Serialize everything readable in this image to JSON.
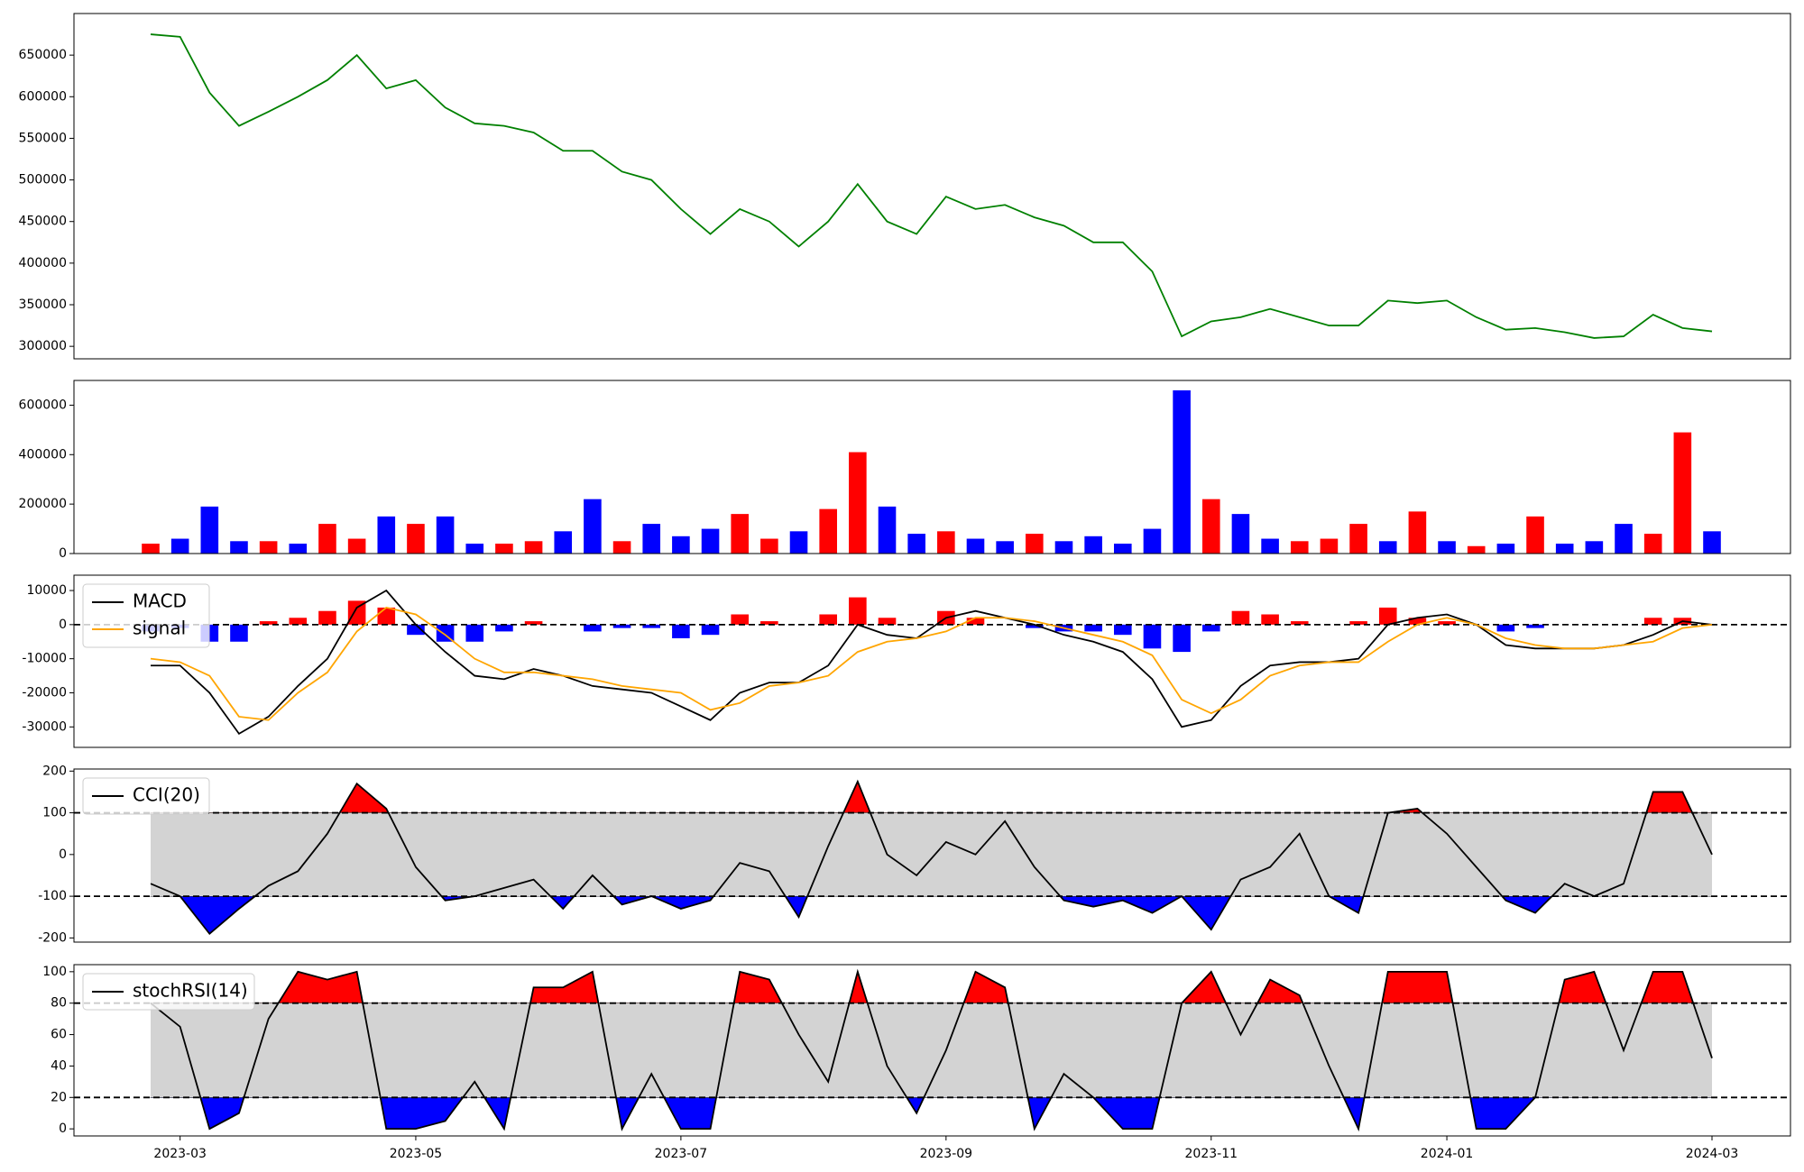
{
  "chart_data": [
    {
      "type": "line",
      "ylim": [
        285000,
        700000
      ],
      "yticks": [
        300000,
        350000,
        400000,
        450000,
        500000,
        550000,
        600000,
        650000
      ],
      "series": [
        {
          "color": "#008000",
          "values": [
            675000,
            672000,
            605000,
            565000,
            582000,
            600000,
            620000,
            650000,
            610000,
            620000,
            587000,
            568000,
            565000,
            557000,
            535000,
            535000,
            510000,
            500000,
            465000,
            435000,
            465000,
            450000,
            420000,
            450000,
            495000,
            450000,
            435000,
            480000,
            465000,
            470000,
            455000,
            445000,
            425000,
            425000,
            390000,
            312000,
            330000,
            335000,
            345000,
            335000,
            325000,
            325000,
            355000,
            352000,
            355000,
            335000,
            320000,
            322000,
            317000,
            310000,
            312000,
            338000,
            322000,
            318000
          ]
        }
      ]
    },
    {
      "type": "bar",
      "ylim": [
        0,
        700000
      ],
      "yticks": [
        0,
        200000,
        400000,
        600000
      ],
      "values": [
        40000,
        60000,
        190000,
        50000,
        50000,
        40000,
        120000,
        60000,
        150000,
        120000,
        150000,
        40000,
        40000,
        50000,
        90000,
        220000,
        50000,
        120000,
        70000,
        100000,
        160000,
        60000,
        90000,
        180000,
        410000,
        190000,
        80000,
        90000,
        60000,
        50000,
        80000,
        50000,
        70000,
        40000,
        100000,
        660000,
        220000,
        160000,
        60000,
        50000,
        60000,
        120000,
        50000,
        170000,
        50000,
        30000,
        40000,
        150000,
        40000,
        50000,
        120000,
        80000,
        490000,
        90000
      ],
      "colors": [
        "#ff0000",
        "#0000ff",
        "#0000ff",
        "#0000ff",
        "#ff0000",
        "#0000ff",
        "#ff0000",
        "#ff0000",
        "#0000ff",
        "#ff0000",
        "#0000ff",
        "#0000ff",
        "#ff0000",
        "#ff0000",
        "#0000ff",
        "#0000ff",
        "#ff0000",
        "#0000ff",
        "#0000ff",
        "#0000ff",
        "#ff0000",
        "#ff0000",
        "#0000ff",
        "#ff0000",
        "#ff0000",
        "#0000ff",
        "#0000ff",
        "#ff0000",
        "#0000ff",
        "#0000ff",
        "#ff0000",
        "#0000ff",
        "#0000ff",
        "#0000ff",
        "#0000ff",
        "#0000ff",
        "#ff0000",
        "#0000ff",
        "#0000ff",
        "#ff0000",
        "#ff0000",
        "#ff0000",
        "#0000ff",
        "#ff0000",
        "#0000ff",
        "#ff0000",
        "#0000ff",
        "#ff0000",
        "#0000ff",
        "#0000ff",
        "#0000ff",
        "#ff0000",
        "#ff0000",
        "#0000ff"
      ]
    },
    {
      "type": "line",
      "ylim": [
        -36000,
        14500
      ],
      "yticks": [
        -30000,
        -20000,
        -10000,
        0,
        10000
      ],
      "thresholds": [
        0
      ],
      "series": [
        {
          "name": "MACD",
          "color": "#000000",
          "values": [
            -12000,
            -12000,
            -20000,
            -32000,
            -27000,
            -18000,
            -10000,
            5000,
            10000,
            0,
            -8000,
            -15000,
            -16000,
            -13000,
            -15000,
            -18000,
            -19000,
            -20000,
            -24000,
            -28000,
            -20000,
            -17000,
            -17000,
            -12000,
            0,
            -3000,
            -4000,
            2000,
            4000,
            2000,
            0,
            -3000,
            -5000,
            -8000,
            -16000,
            -30000,
            -28000,
            -18000,
            -12000,
            -11000,
            -11000,
            -10000,
            0,
            2000,
            3000,
            0,
            -6000,
            -7000,
            -7000,
            -7000,
            -6000,
            -3000,
            1000,
            0
          ]
        },
        {
          "name": "signal",
          "color": "#ffa500",
          "values": [
            -10000,
            -11000,
            -15000,
            -27000,
            -28000,
            -20000,
            -14000,
            -2000,
            5000,
            3000,
            -3000,
            -10000,
            -14000,
            -14000,
            -15000,
            -16000,
            -18000,
            -19000,
            -20000,
            -25000,
            -23000,
            -18000,
            -17000,
            -15000,
            -8000,
            -5000,
            -4000,
            -2000,
            2000,
            2000,
            1000,
            -1000,
            -3000,
            -5000,
            -9000,
            -22000,
            -26000,
            -22000,
            -15000,
            -12000,
            -11000,
            -11000,
            -5000,
            0,
            2000,
            0,
            -4000,
            -6000,
            -7000,
            -7000,
            -6000,
            -5000,
            -1000,
            0
          ]
        }
      ],
      "histogram": {
        "positive_color": "#ff0000",
        "negative_color": "#0000ff",
        "values": [
          -2000,
          -1000,
          -5000,
          -5000,
          1000,
          2000,
          4000,
          7000,
          5000,
          -3000,
          -5000,
          -5000,
          -2000,
          1000,
          0,
          -2000,
          -1000,
          -1000,
          -4000,
          -3000,
          3000,
          1000,
          0,
          3000,
          8000,
          2000,
          0,
          4000,
          2000,
          0,
          -1000,
          -2000,
          -2000,
          -3000,
          -7000,
          -8000,
          -2000,
          4000,
          3000,
          1000,
          0,
          1000,
          5000,
          2000,
          1000,
          0,
          -2000,
          -1000,
          0,
          0,
          0,
          2000,
          2000,
          0
        ]
      }
    },
    {
      "type": "line",
      "ylim": [
        -210,
        205
      ],
      "yticks": [
        -200,
        -100,
        0,
        100,
        200
      ],
      "thresholds": [
        -100,
        100
      ],
      "band_color": "#d3d3d3",
      "above_color": "#ff0000",
      "below_color": "#0000ff",
      "series": [
        {
          "name": "CCI(20)",
          "color": "#000000",
          "values": [
            -70,
            -100,
            -190,
            -130,
            -75,
            -40,
            50,
            170,
            110,
            -30,
            -110,
            -100,
            -80,
            -60,
            -130,
            -50,
            -120,
            -100,
            -130,
            -110,
            -20,
            -40,
            -150,
            20,
            175,
            0,
            -50,
            30,
            0,
            80,
            -30,
            -110,
            -125,
            -110,
            -140,
            -100,
            -180,
            -60,
            -30,
            50,
            -100,
            -140,
            100,
            110,
            50,
            -30,
            -110,
            -140,
            -70,
            -100,
            -70,
            150,
            150,
            0
          ]
        }
      ]
    },
    {
      "type": "line",
      "ylim": [
        -4.5,
        104.5
      ],
      "yticks": [
        0,
        20,
        40,
        60,
        80,
        100
      ],
      "thresholds": [
        20,
        80
      ],
      "band_color": "#d3d3d3",
      "above_color": "#ff0000",
      "below_color": "#0000ff",
      "categories": [
        null,
        "2023-03",
        null,
        null,
        null,
        null,
        null,
        null,
        null,
        "2023-05",
        null,
        null,
        null,
        null,
        null,
        null,
        null,
        null,
        "2023-07",
        null,
        null,
        null,
        null,
        null,
        null,
        null,
        null,
        "2023-09",
        null,
        null,
        null,
        null,
        null,
        null,
        null,
        null,
        "2023-11",
        null,
        null,
        null,
        null,
        null,
        null,
        null,
        "2024-01",
        null,
        null,
        null,
        null,
        null,
        null,
        null,
        null,
        "2024-03"
      ],
      "series": [
        {
          "name": "stochRSI(14)",
          "color": "#000000",
          "values": [
            80,
            65,
            0,
            10,
            70,
            100,
            95,
            100,
            0,
            0,
            5,
            30,
            0,
            90,
            90,
            100,
            0,
            35,
            0,
            0,
            100,
            95,
            60,
            30,
            100,
            40,
            10,
            50,
            100,
            90,
            0,
            35,
            20,
            0,
            0,
            80,
            100,
            60,
            95,
            85,
            40,
            0,
            100,
            100,
            100,
            0,
            0,
            20,
            95,
            100,
            50,
            100,
            100,
            45
          ]
        }
      ]
    }
  ]
}
